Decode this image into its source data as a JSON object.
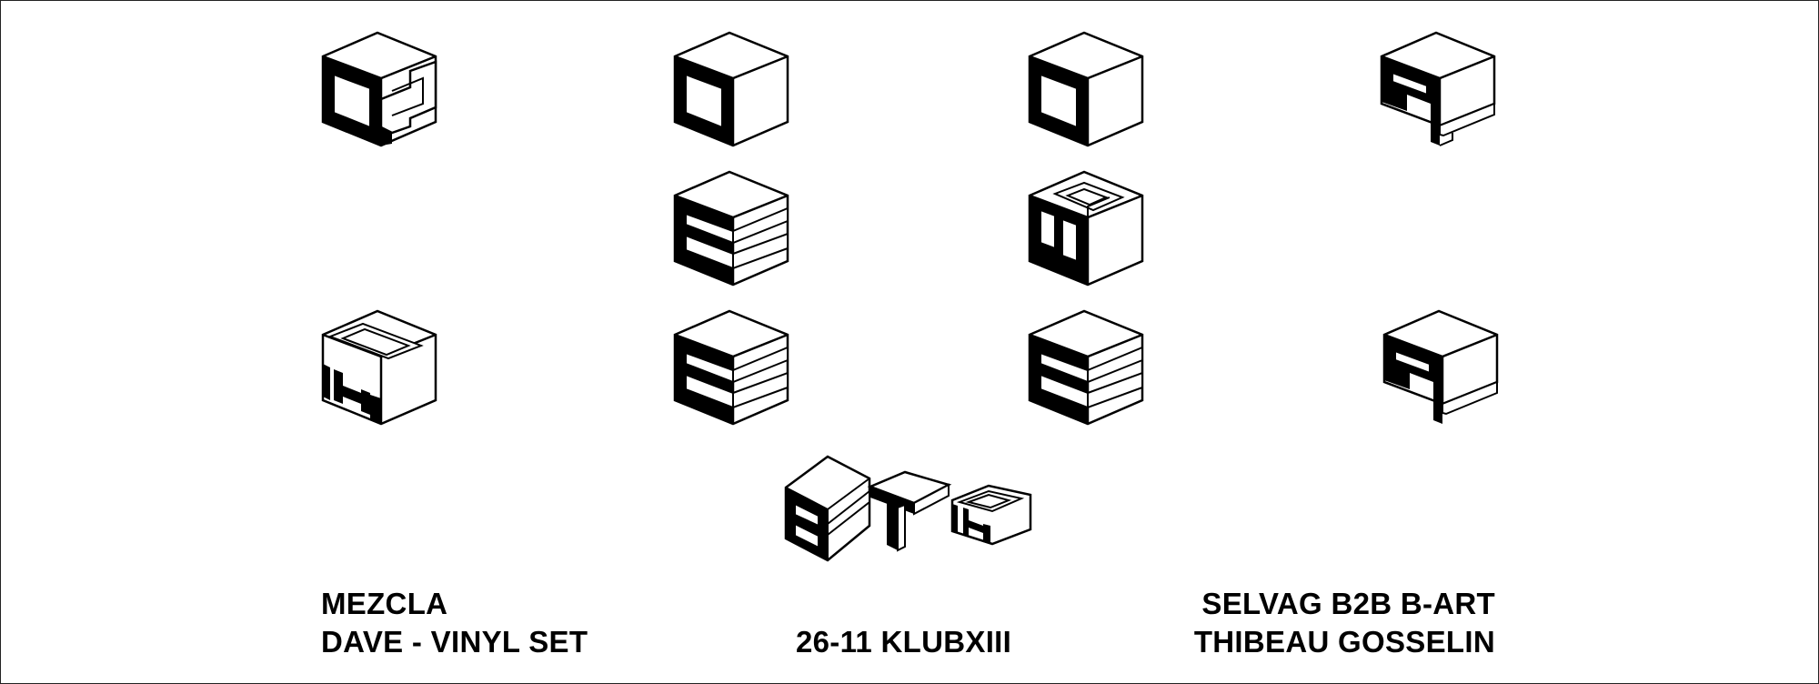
{
  "poster": {
    "lineup_left": {
      "line1": "MEZCLA",
      "line2": "DAVE - VINYL SET"
    },
    "event_info": "26-11 KLUBXIII",
    "lineup_right": {
      "line1": "SELVAG B2B B-ART",
      "line2": "THIBEAU GOSSELIN"
    },
    "glyphs": {
      "row1": [
        "M",
        "O",
        "O",
        "R"
      ],
      "row2": [
        "E",
        "M"
      ],
      "row3": [
        "H",
        "E",
        "E",
        "R"
      ],
      "logo": [
        "B",
        "T",
        "H"
      ]
    }
  },
  "colors": {
    "ink": "#000000",
    "paper": "#ffffff"
  }
}
